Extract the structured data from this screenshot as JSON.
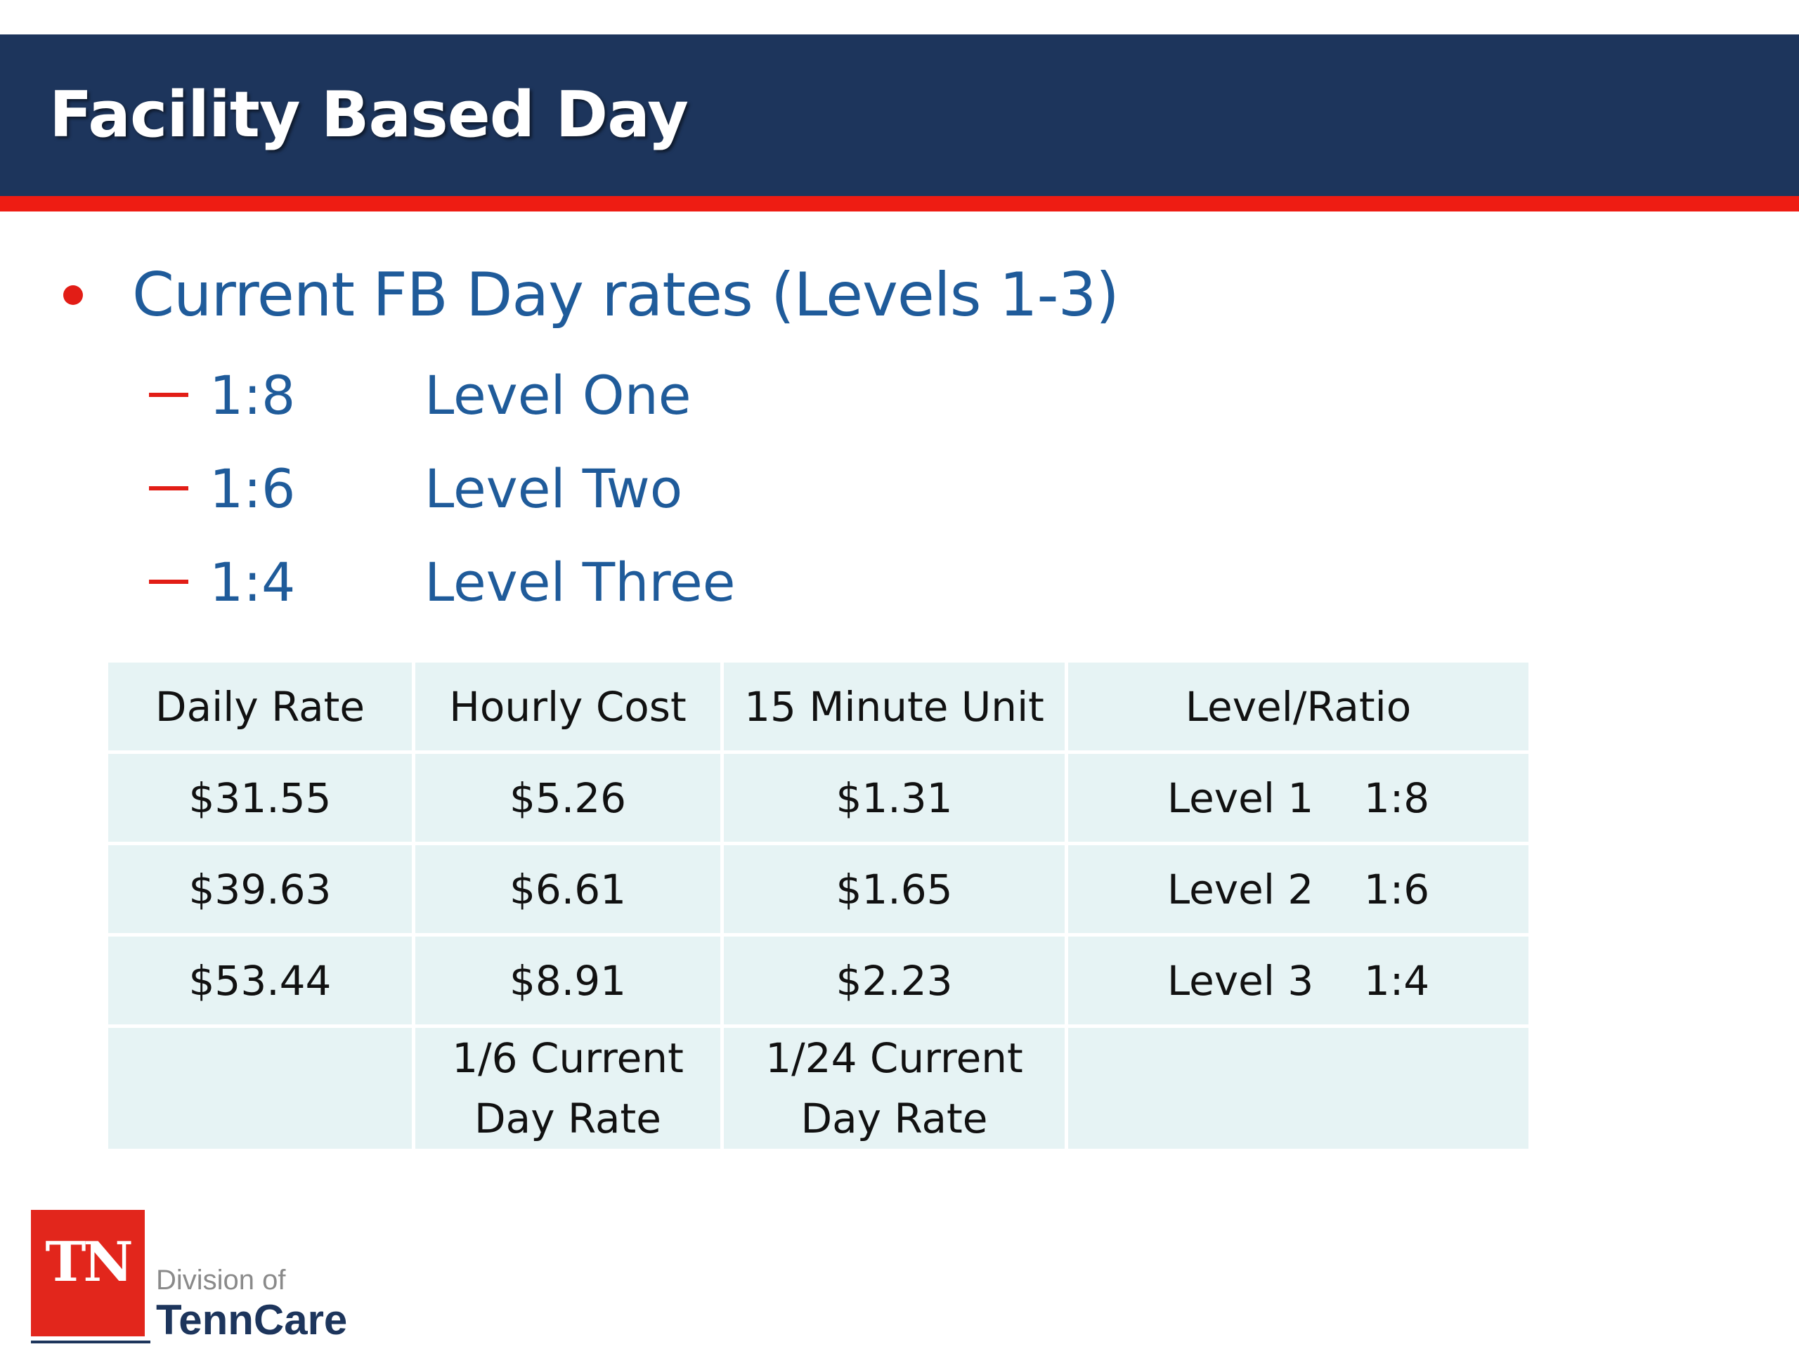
{
  "slide": {
    "title": "Facility Based Day",
    "bullet": "Current FB Day rates (Levels 1-3)",
    "sub_items": [
      {
        "ratio": "1:8",
        "label": "Level One"
      },
      {
        "ratio": "1:6",
        "label": "Level Two"
      },
      {
        "ratio": "1:4",
        "label": "Level Three"
      }
    ]
  },
  "table": {
    "headers": [
      "Daily Rate",
      "Hourly Cost",
      "15 Minute Unit",
      "Level/Ratio"
    ],
    "rows": [
      {
        "daily": "$31.55",
        "hourly": "$5.26",
        "unit": "$1.31",
        "level": "Level 1",
        "ratio": "1:8"
      },
      {
        "daily": "$39.63",
        "hourly": "$6.61",
        "unit": "$1.65",
        "level": "Level 2",
        "ratio": "1:6"
      },
      {
        "daily": "$53.44",
        "hourly": "$8.91",
        "unit": "$2.23",
        "level": "Level 3",
        "ratio": "1:4"
      }
    ],
    "notes": {
      "daily": "",
      "hourly_line1": "1/6 Current",
      "hourly_line2": "Day Rate",
      "unit_line1": "1/24 Current",
      "unit_line2": "Day Rate",
      "level": ""
    }
  },
  "logo": {
    "mark": "TN",
    "division": "Division of",
    "name": "TennCare"
  },
  "colors": {
    "title_bar": "#1d355c",
    "accent_red": "#ee1c13",
    "body_text_blue": "#1f5b9a",
    "table_cell": "#e6f3f4"
  }
}
